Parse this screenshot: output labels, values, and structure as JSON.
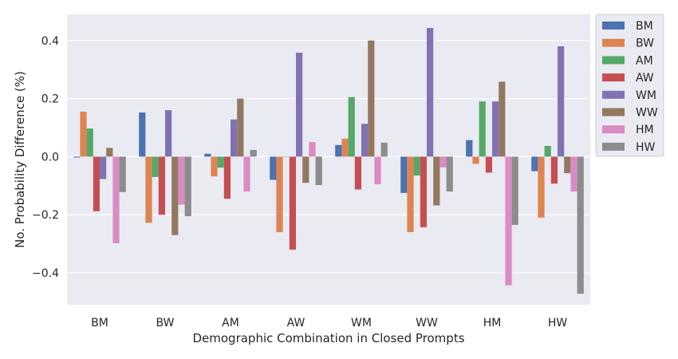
{
  "chart_data": {
    "type": "bar",
    "xlabel": "Demographic Combination in Closed Prompts",
    "ylabel": "No. Probability Difference (%)",
    "ylim": [
      -0.51,
      0.49
    ],
    "yticks": [
      -0.4,
      -0.2,
      0.0,
      0.2,
      0.4
    ],
    "ytick_labels": [
      "−0.4",
      "−0.2",
      "0.0",
      "0.2",
      "0.4"
    ],
    "grid": true,
    "legend_position": "outside-right",
    "categories": [
      "BM",
      "BW",
      "AM",
      "AW",
      "WM",
      "WW",
      "HM",
      "HW"
    ],
    "series": [
      {
        "name": "BM",
        "color": "#4c72b0",
        "values": [
          -0.003,
          0.152,
          0.01,
          -0.08,
          0.04,
          -0.125,
          0.057,
          -0.05
        ]
      },
      {
        "name": "BW",
        "color": "#dd8452",
        "values": [
          0.155,
          -0.228,
          -0.068,
          -0.26,
          0.062,
          -0.26,
          -0.025,
          -0.21
        ]
      },
      {
        "name": "AM",
        "color": "#55a868",
        "values": [
          0.097,
          -0.07,
          -0.038,
          0.0,
          0.205,
          -0.065,
          0.19,
          0.037
        ]
      },
      {
        "name": "AW",
        "color": "#c44e52",
        "values": [
          -0.188,
          -0.2,
          -0.145,
          -0.32,
          -0.113,
          -0.243,
          -0.055,
          -0.093
        ]
      },
      {
        "name": "WM",
        "color": "#8172b3",
        "values": [
          -0.077,
          0.16,
          0.128,
          0.358,
          0.113,
          0.443,
          0.19,
          0.38
        ]
      },
      {
        "name": "WW",
        "color": "#937860",
        "values": [
          0.03,
          -0.27,
          0.2,
          -0.09,
          0.4,
          -0.168,
          0.258,
          -0.057
        ]
      },
      {
        "name": "HM",
        "color": "#da8bc3",
        "values": [
          -0.298,
          -0.165,
          -0.12,
          0.05,
          -0.095,
          -0.037,
          -0.443,
          -0.12
        ]
      },
      {
        "name": "HW",
        "color": "#8c8c8c",
        "values": [
          -0.122,
          -0.205,
          0.023,
          -0.098,
          0.048,
          -0.12,
          -0.235,
          -0.472
        ]
      }
    ]
  }
}
